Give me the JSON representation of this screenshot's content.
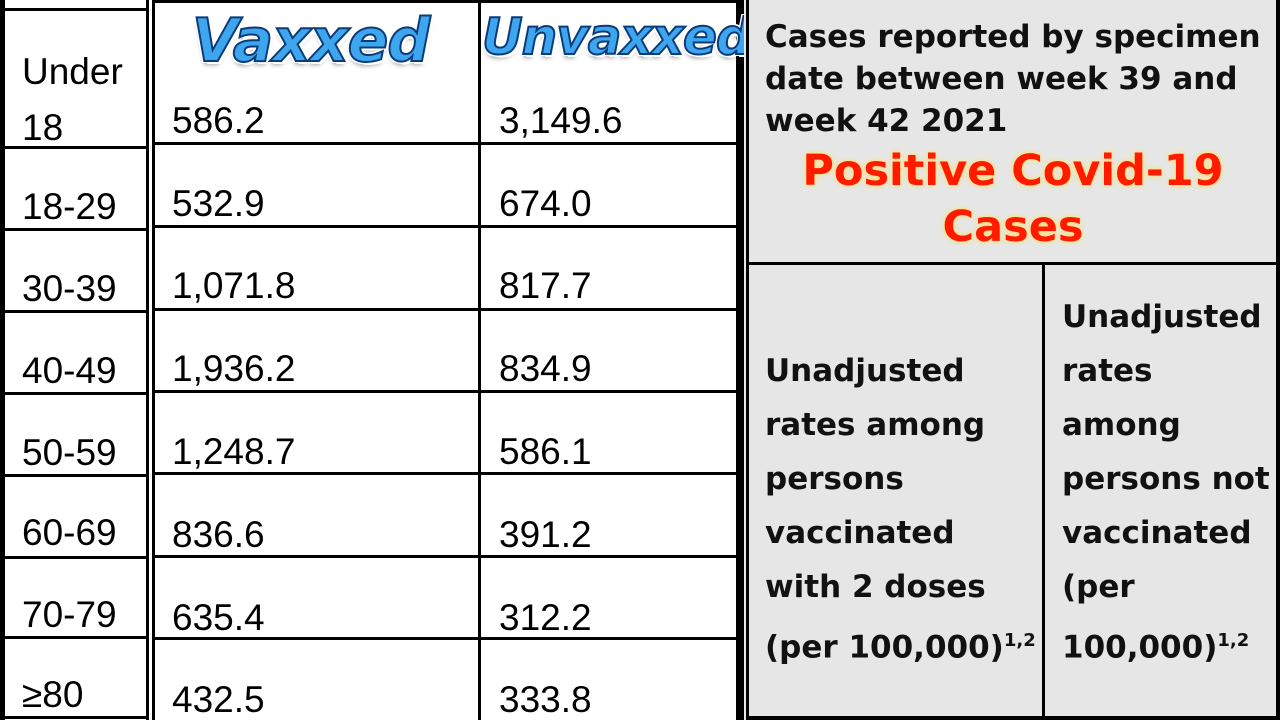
{
  "table": {
    "logo_vaxxed": "Vaxxed",
    "logo_unvaxxed": "Unvaxxed",
    "rows": [
      {
        "age": "Under 18",
        "vaxxed": "586.2",
        "unvaxxed": "3,149.6"
      },
      {
        "age": "18-29",
        "vaxxed": "532.9",
        "unvaxxed": "674.0"
      },
      {
        "age": "30-39",
        "vaxxed": "1,071.8",
        "unvaxxed": "817.7"
      },
      {
        "age": "40-49",
        "vaxxed": "1,936.2",
        "unvaxxed": "834.9"
      },
      {
        "age": "50-59",
        "vaxxed": "1,248.7",
        "unvaxxed": "586.1"
      },
      {
        "age": "60-69",
        "vaxxed": "836.6",
        "unvaxxed": "391.2"
      },
      {
        "age": "70-79",
        "vaxxed": "635.4",
        "unvaxxed": "312.2"
      },
      {
        "age": "≥80",
        "vaxxed": "432.5",
        "unvaxxed": "333.8"
      }
    ]
  },
  "panel": {
    "caption": "Cases reported by specimen date between week 39 and week 42 2021",
    "headline": "Positive Covid-19 Cases",
    "col_vaccinated": "Unadjusted rates among persons vaccinated with 2 doses (per 100,000)",
    "col_not_vaccinated": "Unadjusted rates among persons not vaccinated (per 100,000)",
    "footnote_marker": "1,2"
  },
  "colors": {
    "logo_fill": "#3ea6ee",
    "logo_outline": "#0b3c7a",
    "headline": "#ff1a00",
    "panel_bg": "#e6e6e6"
  }
}
